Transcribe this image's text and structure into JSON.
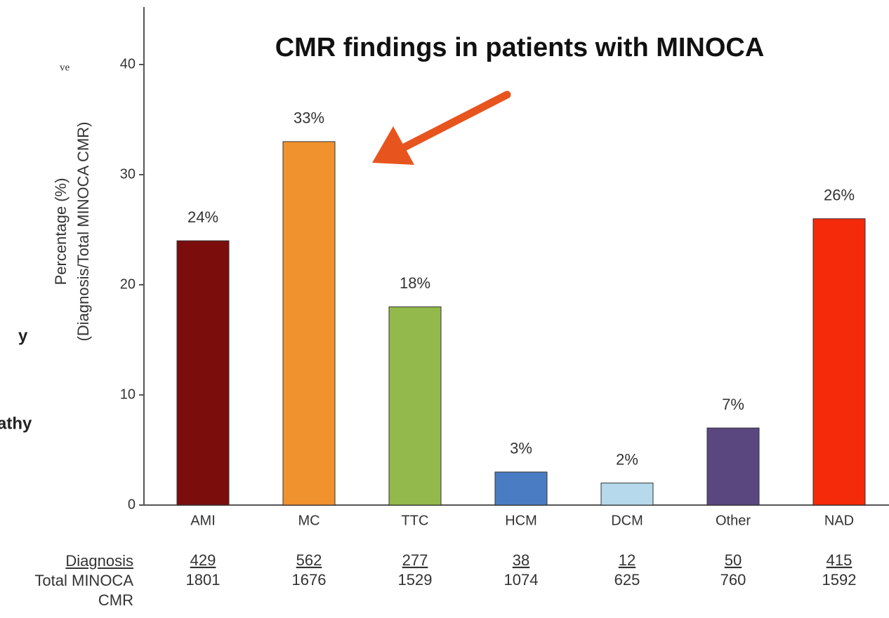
{
  "chart_data": {
    "type": "bar",
    "title": "CMR findings in patients with MINOCA",
    "ylabel": [
      "Percentage (%)",
      "(Diagnosis/Total MINOCA CMR)"
    ],
    "categories": [
      "AMI",
      "MC",
      "TTC",
      "HCM",
      "DCM",
      "Other",
      "NAD"
    ],
    "values": [
      24,
      33,
      18,
      3,
      2,
      7,
      26
    ],
    "value_labels": [
      "24%",
      "33%",
      "18%",
      "3%",
      "2%",
      "7%",
      "26%"
    ],
    "colors": [
      "#7b0d0d",
      "#f0922d",
      "#93b84b",
      "#4a7cc3",
      "#b6d9ec",
      "#5b4780",
      "#f52a0a"
    ],
    "ylim": [
      0,
      45
    ],
    "yticks": [
      0,
      10,
      20,
      30,
      40
    ],
    "grid": false,
    "table": {
      "row_labels": [
        "Diagnosis",
        "Total MINOCA CMR"
      ],
      "rows": [
        [
          429,
          562,
          277,
          38,
          12,
          50,
          415
        ],
        [
          1801,
          1676,
          1529,
          1074,
          625,
          760,
          1592
        ]
      ]
    }
  },
  "background_fragments": [
    "ve",
    "y",
    "athy"
  ]
}
